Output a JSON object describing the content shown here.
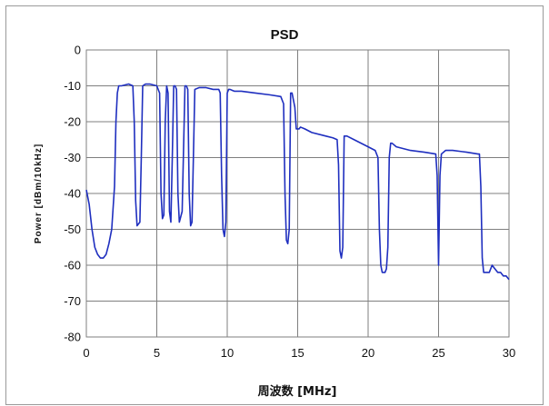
{
  "chart_data": {
    "type": "line",
    "title": "PSD",
    "xlabel": "周波数 [MHz]",
    "ylabel": "Power [dBm/10kHz]",
    "xlim": [
      0,
      30
    ],
    "ylim": [
      -80,
      0
    ],
    "xticks": [
      "0",
      "5",
      "10",
      "15",
      "20",
      "25",
      "30"
    ],
    "yticks": [
      "0",
      "-10",
      "-20",
      "-30",
      "-40",
      "-50",
      "-60",
      "-70",
      "-80"
    ],
    "grid": true,
    "legend": "none",
    "line_color": "#1f2fbf",
    "series": [
      {
        "x": [
          0,
          0.2,
          0.4,
          0.6,
          0.8,
          1.0,
          1.2,
          1.4,
          1.6,
          1.8,
          2.0,
          2.1,
          2.2,
          2.3,
          2.5,
          3.0,
          3.3,
          3.4,
          3.5,
          3.6,
          3.8,
          3.9,
          4.0,
          4.2,
          4.5,
          5.0,
          5.2,
          5.3,
          5.4,
          5.5,
          5.6,
          5.7,
          5.8,
          5.9,
          6.0,
          6.1,
          6.2,
          6.3,
          6.4,
          6.5,
          6.6,
          6.8,
          7.0,
          7.1,
          7.2,
          7.3,
          7.4,
          7.5,
          7.7,
          8.0,
          8.5,
          9.0,
          9.4,
          9.5,
          9.6,
          9.7,
          9.8,
          9.9,
          10.0,
          10.1,
          10.2,
          10.5,
          11.0,
          12.0,
          13.0,
          13.8,
          14.0,
          14.1,
          14.2,
          14.3,
          14.4,
          14.5,
          14.6,
          14.8,
          14.9,
          15.0,
          15.1,
          15.2,
          15.5,
          16.0,
          17.0,
          17.5,
          17.8,
          17.9,
          18.0,
          18.1,
          18.2,
          18.3,
          18.5,
          19.0,
          20.0,
          20.5,
          20.7,
          20.8,
          20.9,
          21.0,
          21.2,
          21.3,
          21.4,
          21.5,
          21.6,
          21.7,
          22.0,
          23.0,
          24.0,
          24.8,
          24.9,
          25.0,
          25.1,
          25.2,
          25.5,
          26.0,
          27.0,
          27.8,
          27.9,
          28.0,
          28.1,
          28.2,
          28.4,
          28.6,
          28.8,
          29.0,
          29.2,
          29.4,
          29.6,
          29.8,
          30.0
        ],
        "y": [
          -39,
          -43,
          -50,
          -55,
          -57,
          -58,
          -58,
          -57,
          -54,
          -50,
          -38,
          -20,
          -12,
          -10,
          -10,
          -9.5,
          -10,
          -20,
          -42,
          -49,
          -48,
          -30,
          -10,
          -9.5,
          -9.5,
          -10,
          -12,
          -40,
          -47,
          -46,
          -20,
          -10,
          -12,
          -45,
          -48,
          -30,
          -10,
          -10,
          -11,
          -40,
          -48,
          -45,
          -10,
          -10,
          -11,
          -40,
          -49,
          -48,
          -11,
          -10.5,
          -10.5,
          -11,
          -11,
          -12,
          -35,
          -50,
          -52,
          -48,
          -12,
          -11,
          -11,
          -11.5,
          -11.5,
          -12,
          -12.5,
          -13,
          -15,
          -40,
          -53,
          -54,
          -50,
          -12,
          -12,
          -16,
          -22,
          -22,
          -22,
          -21.5,
          -22,
          -23,
          -24,
          -24.5,
          -25,
          -32,
          -56,
          -58,
          -55,
          -24,
          -24,
          -25,
          -27,
          -28,
          -30,
          -50,
          -60,
          -62,
          -62,
          -61,
          -55,
          -30,
          -26,
          -26,
          -27,
          -28,
          -28.5,
          -29,
          -35,
          -60,
          -35,
          -29,
          -28,
          -28,
          -28.5,
          -29,
          -29,
          -38,
          -58,
          -62,
          -62,
          -62,
          -60,
          -61,
          -62,
          -62,
          -63,
          -63,
          -64
        ]
      }
    ]
  }
}
